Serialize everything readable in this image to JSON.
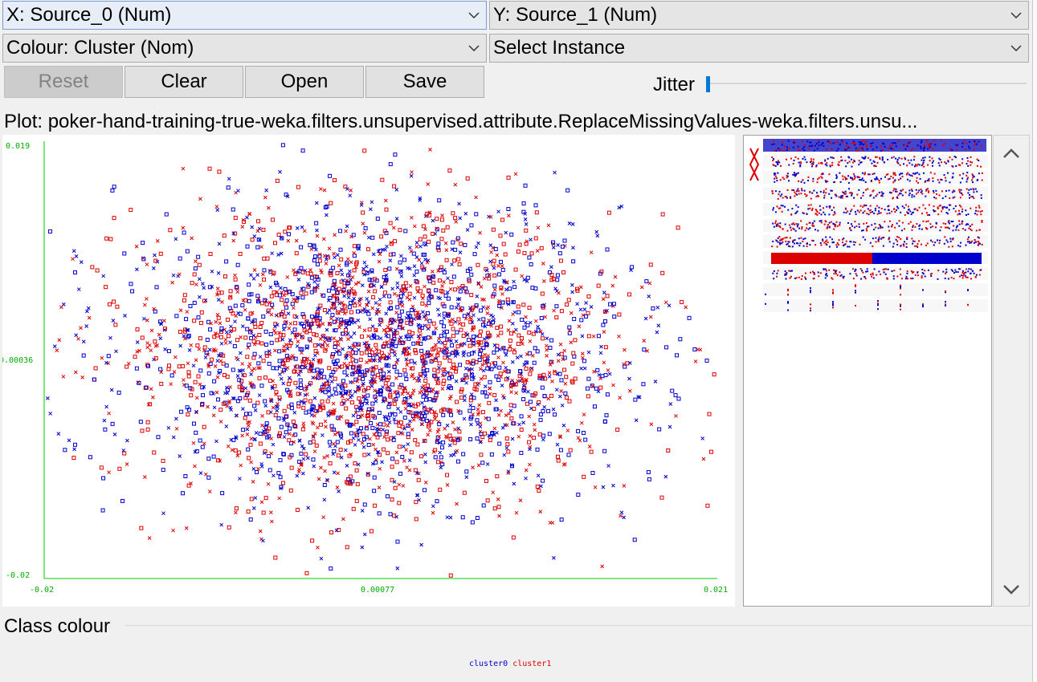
{
  "x_axis_selector": {
    "value": "X: Source_0 (Num)"
  },
  "y_axis_selector": {
    "value": "Y: Source_1 (Num)"
  },
  "colour_selector": {
    "value": "Colour: Cluster (Nom)"
  },
  "instance_selector": {
    "value": "Select Instance"
  },
  "buttons": {
    "reset": "Reset",
    "clear": "Clear",
    "open": "Open",
    "save": "Save"
  },
  "jitter": {
    "label": "Jitter",
    "level": 0
  },
  "plot": {
    "title": "Plot: poker-hand-training-true-weka.filters.unsupervised.attribute.ReplaceMissingValues-weka.filters.unsu...",
    "x_ticks": [
      "-0.02",
      "0.00077",
      "0.021"
    ],
    "y_ticks": [
      "0.019",
      "0.00036",
      "-0.02"
    ]
  },
  "class_colour": {
    "label": "Class colour",
    "legend": [
      {
        "name": "cluster0",
        "color": "#0000cc"
      },
      {
        "name": "cluster1",
        "color": "#dd0000"
      }
    ]
  },
  "chart_data": {
    "type": "scatter",
    "title": "",
    "xlabel": "Source_0",
    "ylabel": "Source_1",
    "xlim": [
      -0.02,
      0.021
    ],
    "ylim": [
      -0.02,
      0.019
    ],
    "x_ticks": [
      "-0.02",
      "0.00077",
      "0.021"
    ],
    "y_ticks": [
      "0.019",
      "0.00036",
      "-0.02"
    ],
    "series": [
      {
        "name": "cluster0",
        "color": "#0000cc",
        "markers": "square and cross",
        "note_center": [
          0.0,
          0.0
        ],
        "spread": [
          0.0075,
          0.0065
        ]
      },
      {
        "name": "cluster1",
        "color": "#dd0000",
        "markers": "square and cross",
        "note_center": [
          0.0,
          0.0
        ],
        "spread": [
          0.0075,
          0.0065
        ]
      }
    ],
    "grid": false,
    "legend": "bottom"
  },
  "colors": {
    "cluster0": "#0000cc",
    "cluster1": "#dd0000",
    "axis": "#00cc00"
  }
}
